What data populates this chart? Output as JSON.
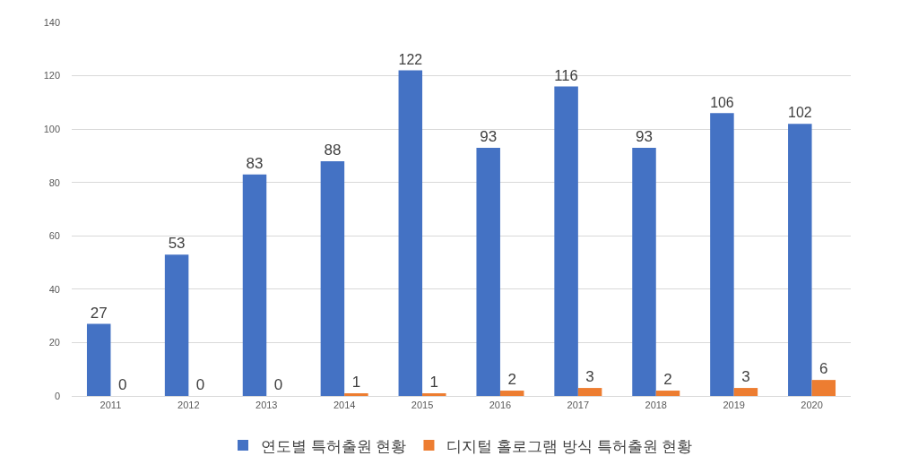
{
  "chart_data": {
    "type": "bar",
    "categories": [
      "2011",
      "2012",
      "2013",
      "2014",
      "2015",
      "2016",
      "2017",
      "2018",
      "2019",
      "2020"
    ],
    "series": [
      {
        "name": "연도별 특허출원 현황",
        "color": "#4472c4",
        "values": [
          27,
          53,
          83,
          88,
          122,
          93,
          116,
          93,
          106,
          102
        ]
      },
      {
        "name": "디지털 홀로그램 방식 특허출원 현황",
        "color": "#ed7d31",
        "values": [
          0,
          0,
          0,
          1,
          1,
          2,
          3,
          2,
          3,
          6
        ]
      }
    ],
    "ylim": [
      0,
      140
    ],
    "yticks": [
      0,
      20,
      40,
      60,
      80,
      100,
      120,
      140
    ],
    "grid": "y",
    "legend": "bottom",
    "data_labels": true
  }
}
